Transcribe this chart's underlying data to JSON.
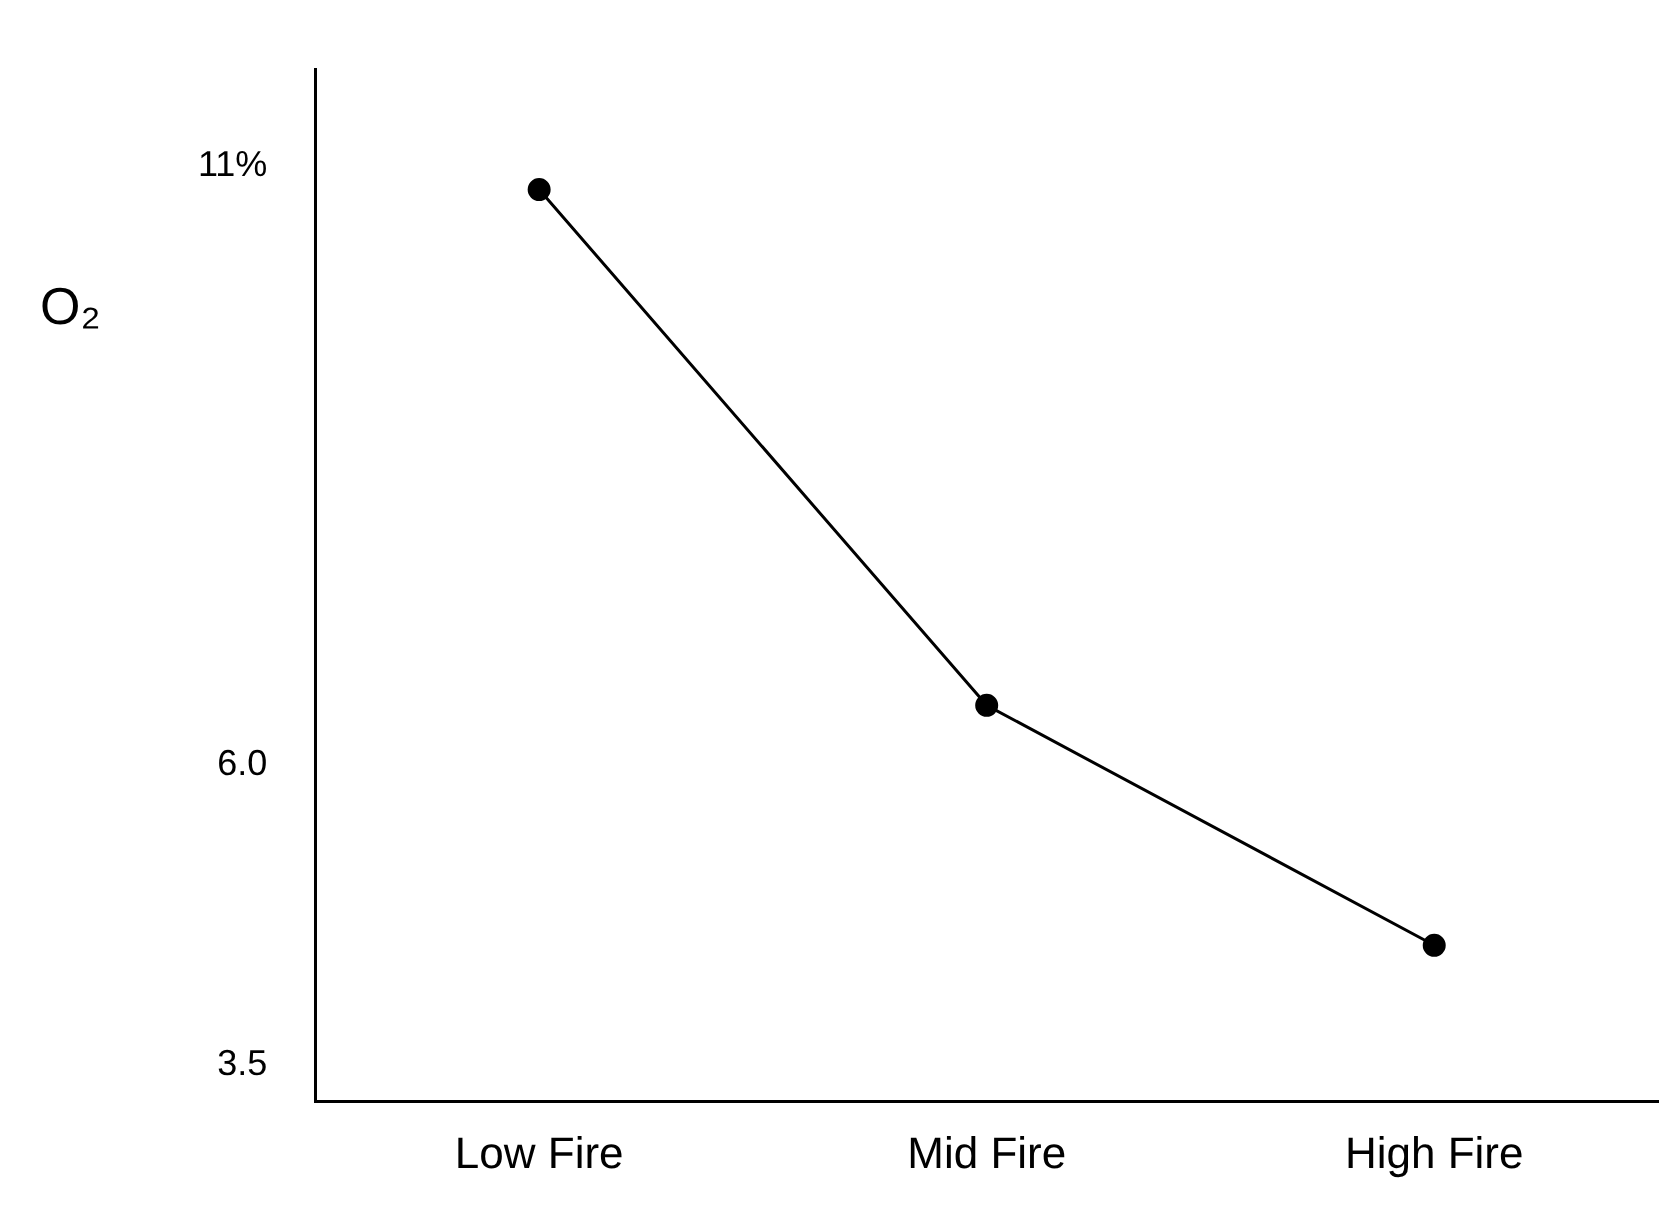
{
  "chart_data": {
    "type": "line",
    "ylabel": "O₂",
    "categories": [
      "Low Fire",
      "Mid Fire",
      "High Fire"
    ],
    "series": [
      {
        "color": "#000000",
        "values": [
          10.8,
          6.5,
          4.5
        ]
      }
    ],
    "ylim": [
      3.2,
      11.8
    ],
    "yticks": [
      {
        "value": 3.5,
        "label": "3.5"
      },
      {
        "value": 6,
        "label": "6.0"
      },
      {
        "value": 11,
        "label": "11%"
      }
    ],
    "grid": false,
    "legend": false,
    "marker": "circle",
    "line_style": "solid"
  }
}
